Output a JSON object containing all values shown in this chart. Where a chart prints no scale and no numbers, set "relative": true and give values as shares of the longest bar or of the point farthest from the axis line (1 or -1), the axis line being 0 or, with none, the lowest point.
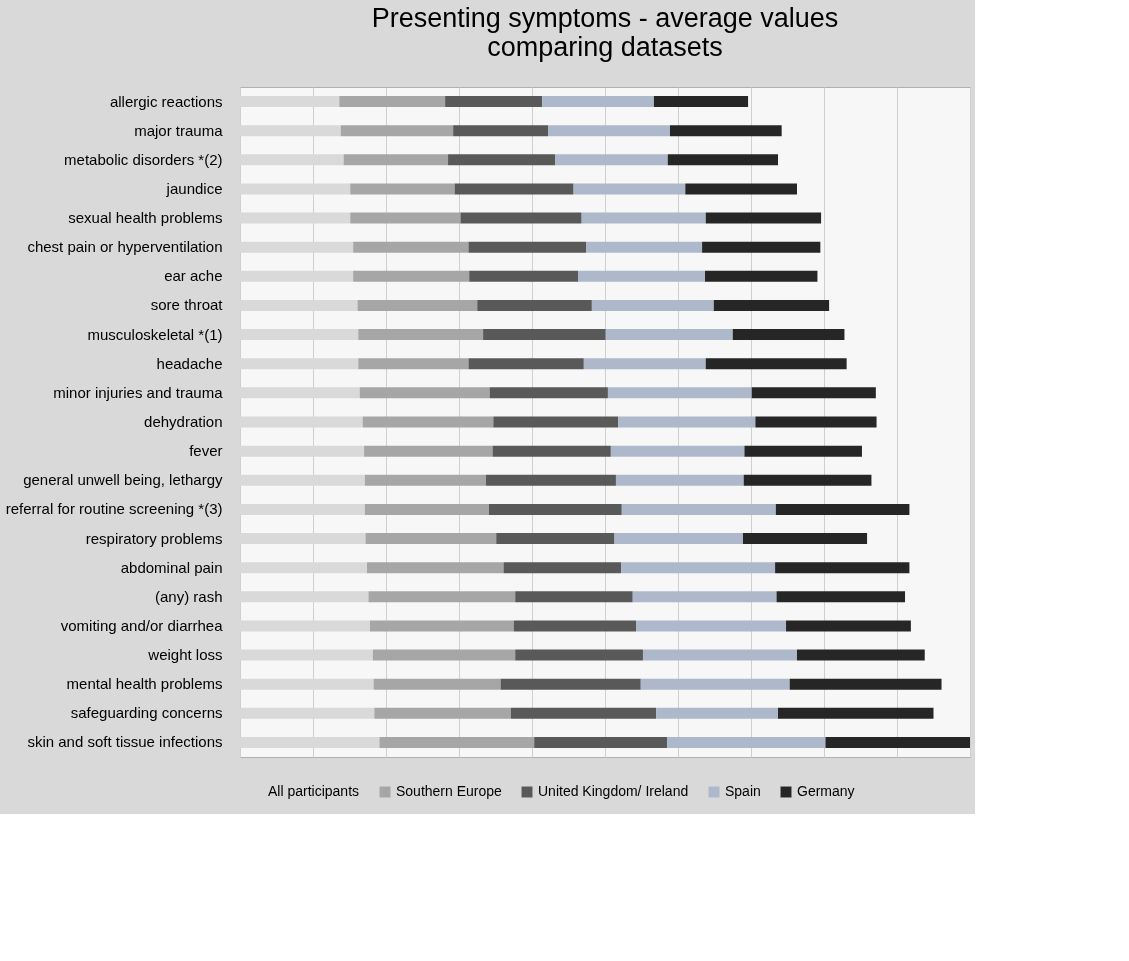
{
  "chart_data": {
    "type": "bar",
    "orientation": "horizontal",
    "stacked": true,
    "relative": true,
    "grid": "x",
    "legend": "bottom",
    "title": [
      "Presenting symptoms - average values",
      "comparing datasets"
    ],
    "categories": [
      "allergic reactions",
      "major trauma",
      "metabolic disorders *(2)",
      "jaundice",
      "sexual health problems",
      "chest pain or hyperventilation",
      "ear ache",
      "sore throat",
      "musculoskeletal *(1)",
      "headache",
      "minor injuries and trauma",
      "dehydration",
      "fever",
      "general unwell being, lethargy",
      "referral for routine screening *(3)",
      "respiratory problems",
      "abdominal pain",
      "(any) rash",
      "vomiting and/or diarrhea",
      "weight loss",
      "mental health problems",
      "safeguarding concerns",
      "skin and soft tissue infections"
    ],
    "series": [
      {
        "name": "All participants",
        "color": "#d9d9d9",
        "values": [
          0.136,
          0.138,
          0.142,
          0.151,
          0.151,
          0.155,
          0.155,
          0.161,
          0.162,
          0.162,
          0.164,
          0.168,
          0.17,
          0.171,
          0.171,
          0.172,
          0.174,
          0.176,
          0.178,
          0.182,
          0.183,
          0.184,
          0.191
        ]
      },
      {
        "name": "Southern Europe",
        "color": "#a6a6a6",
        "values": [
          0.145,
          0.154,
          0.143,
          0.143,
          0.151,
          0.158,
          0.159,
          0.164,
          0.171,
          0.151,
          0.178,
          0.179,
          0.176,
          0.166,
          0.17,
          0.179,
          0.187,
          0.201,
          0.197,
          0.195,
          0.174,
          0.187,
          0.212
        ]
      },
      {
        "name": "United Kingdom/ Ireland",
        "color": "#595959",
        "values": [
          0.133,
          0.13,
          0.147,
          0.163,
          0.166,
          0.161,
          0.149,
          0.157,
          0.168,
          0.158,
          0.162,
          0.171,
          0.162,
          0.178,
          0.182,
          0.162,
          0.161,
          0.161,
          0.168,
          0.175,
          0.192,
          0.199,
          0.182
        ]
      },
      {
        "name": "Spain",
        "color": "#adb9ca",
        "values": [
          0.153,
          0.167,
          0.154,
          0.153,
          0.17,
          0.159,
          0.174,
          0.167,
          0.174,
          0.167,
          0.197,
          0.188,
          0.183,
          0.175,
          0.211,
          0.176,
          0.211,
          0.197,
          0.205,
          0.211,
          0.204,
          0.167,
          0.217
        ]
      },
      {
        "name": "Germany",
        "color": "#262626",
        "values": [
          0.129,
          0.153,
          0.151,
          0.153,
          0.158,
          0.162,
          0.154,
          0.158,
          0.153,
          0.193,
          0.17,
          0.166,
          0.161,
          0.175,
          0.183,
          0.17,
          0.184,
          0.176,
          0.171,
          0.175,
          0.208,
          0.213,
          0.198
        ]
      }
    ]
  }
}
